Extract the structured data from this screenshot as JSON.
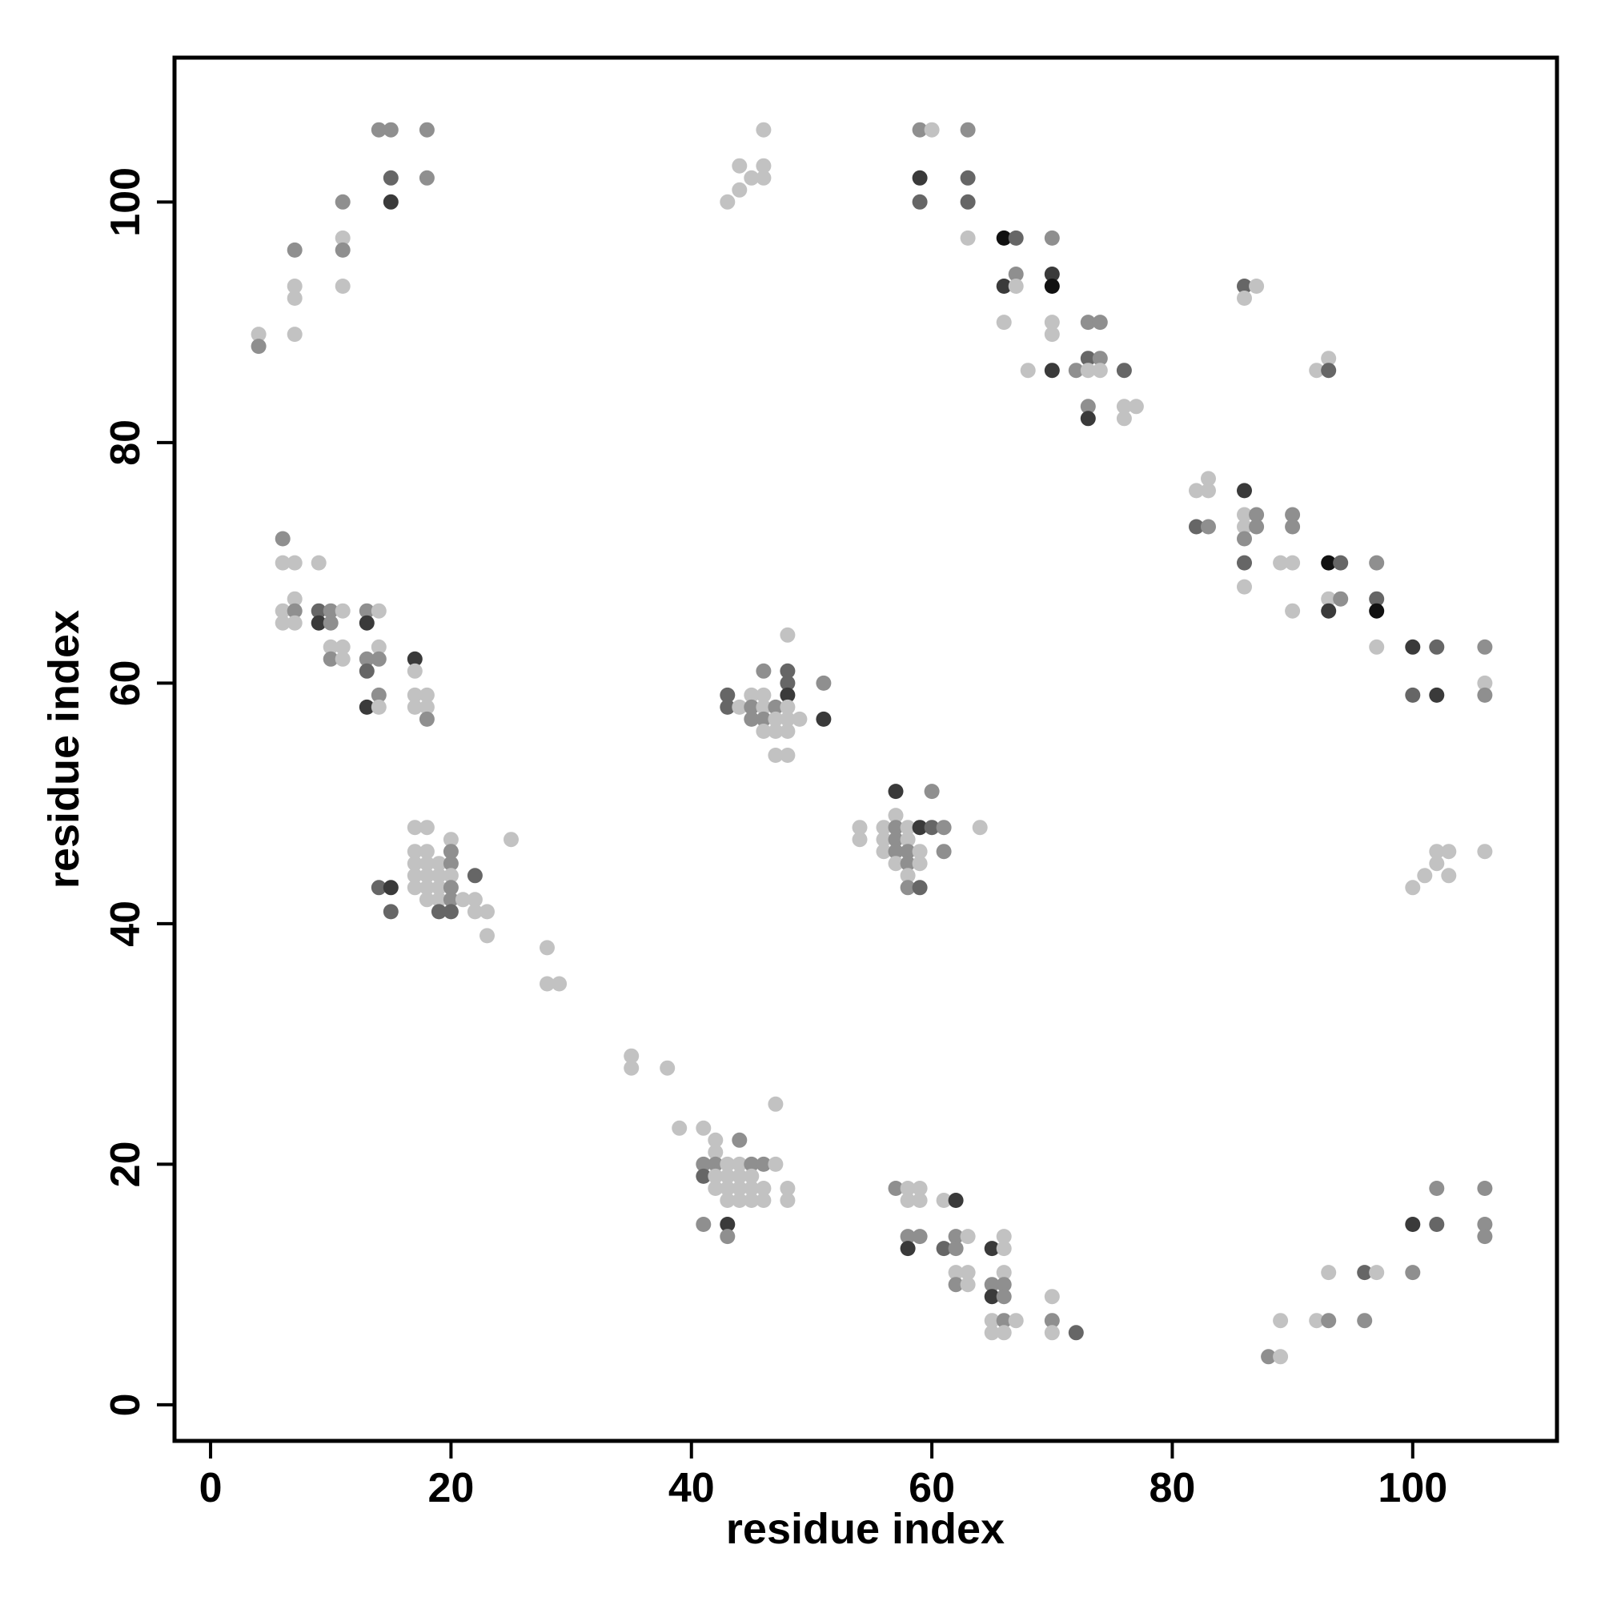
{
  "chart_data": {
    "type": "scatter",
    "title": "",
    "xlabel": "residue index",
    "ylabel": "residue index",
    "xlim": [
      -3,
      112
    ],
    "ylim": [
      -3,
      112
    ],
    "xticks": [
      0,
      20,
      40,
      60,
      80,
      100
    ],
    "yticks": [
      0,
      20,
      40,
      60,
      80,
      100
    ],
    "grid": false,
    "legend": "none",
    "marker_shades": {
      "1": "#c2c2c2",
      "2": "#8f8f8f",
      "3": "#666666",
      "4": "#3a3a3a",
      "5": "#111111"
    },
    "points": [
      [
        4,
        89,
        1
      ],
      [
        4,
        88,
        2
      ],
      [
        7,
        96,
        2
      ],
      [
        7,
        93,
        1
      ],
      [
        7,
        92,
        1
      ],
      [
        7,
        89,
        1
      ],
      [
        11,
        100,
        2
      ],
      [
        11,
        97,
        1
      ],
      [
        11,
        96,
        2
      ],
      [
        11,
        93,
        1
      ],
      [
        14,
        106,
        2
      ],
      [
        15,
        106,
        2
      ],
      [
        15,
        102,
        3
      ],
      [
        15,
        100,
        4
      ],
      [
        18,
        106,
        2
      ],
      [
        18,
        102,
        2
      ],
      [
        43,
        100,
        1
      ],
      [
        44,
        103,
        1
      ],
      [
        44,
        101,
        1
      ],
      [
        45,
        102,
        1
      ],
      [
        46,
        103,
        1
      ],
      [
        46,
        102,
        1
      ],
      [
        46,
        106,
        1
      ],
      [
        59,
        106,
        2
      ],
      [
        60,
        106,
        1
      ],
      [
        63,
        106,
        2
      ],
      [
        59,
        102,
        4
      ],
      [
        59,
        100,
        3
      ],
      [
        63,
        102,
        3
      ],
      [
        63,
        100,
        3
      ],
      [
        63,
        97,
        1
      ],
      [
        66,
        97,
        5
      ],
      [
        67,
        97,
        3
      ],
      [
        66,
        93,
        4
      ],
      [
        67,
        94,
        2
      ],
      [
        67,
        93,
        1
      ],
      [
        66,
        90,
        1
      ],
      [
        68,
        86,
        1
      ],
      [
        70,
        97,
        2
      ],
      [
        70,
        94,
        4
      ],
      [
        70,
        93,
        5
      ],
      [
        70,
        90,
        1
      ],
      [
        70,
        89,
        1
      ],
      [
        70,
        86,
        4
      ],
      [
        72,
        86,
        2
      ],
      [
        73,
        90,
        2
      ],
      [
        74,
        90,
        2
      ],
      [
        73,
        87,
        3
      ],
      [
        74,
        87,
        2
      ],
      [
        73,
        86,
        1
      ],
      [
        74,
        86,
        1
      ],
      [
        73,
        83,
        2
      ],
      [
        73,
        82,
        4
      ],
      [
        76,
        86,
        3
      ],
      [
        76,
        83,
        1
      ],
      [
        77,
        83,
        1
      ],
      [
        76,
        82,
        1
      ],
      [
        86,
        93,
        3
      ],
      [
        87,
        93,
        1
      ],
      [
        86,
        92,
        1
      ],
      [
        92,
        86,
        1
      ],
      [
        93,
        87,
        1
      ],
      [
        93,
        86,
        3
      ],
      [
        82,
        76,
        1
      ],
      [
        83,
        77,
        1
      ],
      [
        83,
        76,
        1
      ],
      [
        82,
        73,
        3
      ],
      [
        83,
        73,
        2
      ],
      [
        86,
        76,
        4
      ],
      [
        86,
        74,
        1
      ],
      [
        87,
        74,
        2
      ],
      [
        86,
        73,
        1
      ],
      [
        87,
        73,
        2
      ],
      [
        86,
        72,
        2
      ],
      [
        86,
        70,
        3
      ],
      [
        86,
        68,
        1
      ],
      [
        89,
        70,
        1
      ],
      [
        90,
        70,
        1
      ],
      [
        90,
        74,
        2
      ],
      [
        90,
        73,
        2
      ],
      [
        90,
        66,
        1
      ],
      [
        93,
        70,
        5
      ],
      [
        94,
        70,
        3
      ],
      [
        93,
        67,
        1
      ],
      [
        94,
        67,
        2
      ],
      [
        93,
        66,
        4
      ],
      [
        97,
        70,
        2
      ],
      [
        97,
        67,
        3
      ],
      [
        97,
        66,
        5
      ],
      [
        97,
        63,
        1
      ],
      [
        100,
        63,
        4
      ],
      [
        102,
        63,
        3
      ],
      [
        100,
        59,
        3
      ],
      [
        102,
        59,
        4
      ],
      [
        106,
        63,
        2
      ],
      [
        106,
        60,
        1
      ],
      [
        106,
        59,
        2
      ],
      [
        6,
        72,
        2
      ],
      [
        6,
        70,
        1
      ],
      [
        7,
        70,
        1
      ],
      [
        9,
        70,
        1
      ],
      [
        6,
        66,
        1
      ],
      [
        7,
        67,
        1
      ],
      [
        7,
        66,
        2
      ],
      [
        6,
        65,
        1
      ],
      [
        7,
        65,
        1
      ],
      [
        9,
        66,
        3
      ],
      [
        10,
        66,
        2
      ],
      [
        11,
        66,
        1
      ],
      [
        9,
        65,
        4
      ],
      [
        10,
        65,
        2
      ],
      [
        10,
        63,
        1
      ],
      [
        11,
        63,
        1
      ],
      [
        10,
        62,
        2
      ],
      [
        11,
        62,
        1
      ],
      [
        13,
        66,
        2
      ],
      [
        14,
        66,
        1
      ],
      [
        13,
        65,
        4
      ],
      [
        14,
        63,
        1
      ],
      [
        13,
        62,
        2
      ],
      [
        14,
        62,
        2
      ],
      [
        13,
        61,
        3
      ],
      [
        14,
        59,
        2
      ],
      [
        13,
        58,
        4
      ],
      [
        14,
        58,
        1
      ],
      [
        17,
        62,
        4
      ],
      [
        17,
        61,
        1
      ],
      [
        17,
        59,
        1
      ],
      [
        18,
        59,
        1
      ],
      [
        17,
        58,
        1
      ],
      [
        18,
        58,
        1
      ],
      [
        18,
        57,
        2
      ],
      [
        17,
        48,
        1
      ],
      [
        18,
        48,
        1
      ],
      [
        20,
        47,
        1
      ],
      [
        25,
        47,
        1
      ],
      [
        17,
        46,
        1
      ],
      [
        18,
        46,
        1
      ],
      [
        20,
        46,
        2
      ],
      [
        17,
        45,
        1
      ],
      [
        18,
        45,
        1
      ],
      [
        19,
        45,
        1
      ],
      [
        20,
        45,
        2
      ],
      [
        17,
        44,
        1
      ],
      [
        18,
        44,
        1
      ],
      [
        19,
        44,
        1
      ],
      [
        20,
        44,
        1
      ],
      [
        17,
        43,
        1
      ],
      [
        18,
        43,
        1
      ],
      [
        19,
        43,
        1
      ],
      [
        20,
        43,
        2
      ],
      [
        14,
        43,
        3
      ],
      [
        15,
        43,
        4
      ],
      [
        18,
        42,
        1
      ],
      [
        19,
        42,
        1
      ],
      [
        20,
        42,
        2
      ],
      [
        21,
        42,
        1
      ],
      [
        22,
        42,
        1
      ],
      [
        22,
        44,
        3
      ],
      [
        15,
        41,
        3
      ],
      [
        19,
        41,
        3
      ],
      [
        20,
        41,
        3
      ],
      [
        22,
        41,
        1
      ],
      [
        23,
        41,
        1
      ],
      [
        23,
        39,
        1
      ],
      [
        28,
        38,
        1
      ],
      [
        28,
        35,
        1
      ],
      [
        29,
        35,
        1
      ],
      [
        35,
        29,
        1
      ],
      [
        35,
        28,
        1
      ],
      [
        38,
        28,
        1
      ],
      [
        39,
        23,
        1
      ],
      [
        41,
        23,
        1
      ],
      [
        42,
        22,
        1
      ],
      [
        44,
        22,
        2
      ],
      [
        42,
        21,
        1
      ],
      [
        47,
        25,
        1
      ],
      [
        41,
        20,
        2
      ],
      [
        42,
        20,
        2
      ],
      [
        43,
        20,
        1
      ],
      [
        44,
        20,
        1
      ],
      [
        45,
        20,
        2
      ],
      [
        46,
        20,
        2
      ],
      [
        47,
        20,
        1
      ],
      [
        41,
        19,
        3
      ],
      [
        42,
        19,
        1
      ],
      [
        43,
        19,
        1
      ],
      [
        44,
        19,
        1
      ],
      [
        45,
        19,
        1
      ],
      [
        42,
        18,
        1
      ],
      [
        43,
        18,
        1
      ],
      [
        44,
        18,
        1
      ],
      [
        45,
        18,
        1
      ],
      [
        46,
        18,
        1
      ],
      [
        48,
        18,
        1
      ],
      [
        43,
        17,
        1
      ],
      [
        44,
        17,
        1
      ],
      [
        45,
        17,
        1
      ],
      [
        46,
        17,
        1
      ],
      [
        48,
        17,
        1
      ],
      [
        41,
        15,
        2
      ],
      [
        43,
        15,
        4
      ],
      [
        43,
        14,
        2
      ],
      [
        43,
        59,
        3
      ],
      [
        43,
        58,
        3
      ],
      [
        44,
        58,
        1
      ],
      [
        45,
        59,
        1
      ],
      [
        46,
        59,
        1
      ],
      [
        46,
        61,
        2
      ],
      [
        48,
        61,
        3
      ],
      [
        48,
        60,
        3
      ],
      [
        48,
        59,
        4
      ],
      [
        45,
        58,
        2
      ],
      [
        46,
        58,
        1
      ],
      [
        47,
        58,
        2
      ],
      [
        48,
        58,
        1
      ],
      [
        45,
        57,
        2
      ],
      [
        46,
        57,
        2
      ],
      [
        47,
        57,
        1
      ],
      [
        48,
        57,
        1
      ],
      [
        49,
        57,
        1
      ],
      [
        46,
        56,
        1
      ],
      [
        47,
        56,
        1
      ],
      [
        48,
        56,
        1
      ],
      [
        47,
        54,
        1
      ],
      [
        48,
        54,
        1
      ],
      [
        48,
        64,
        1
      ],
      [
        51,
        60,
        2
      ],
      [
        51,
        57,
        4
      ],
      [
        54,
        48,
        1
      ],
      [
        54,
        47,
        1
      ],
      [
        56,
        48,
        1
      ],
      [
        57,
        49,
        1
      ],
      [
        57,
        48,
        2
      ],
      [
        58,
        48,
        1
      ],
      [
        56,
        47,
        1
      ],
      [
        57,
        47,
        2
      ],
      [
        58,
        47,
        1
      ],
      [
        56,
        46,
        1
      ],
      [
        57,
        46,
        2
      ],
      [
        58,
        46,
        2
      ],
      [
        59,
        46,
        1
      ],
      [
        57,
        45,
        1
      ],
      [
        58,
        45,
        2
      ],
      [
        59,
        45,
        1
      ],
      [
        58,
        44,
        1
      ],
      [
        58,
        43,
        2
      ],
      [
        59,
        43,
        3
      ],
      [
        59,
        48,
        4
      ],
      [
        60,
        48,
        3
      ],
      [
        61,
        48,
        2
      ],
      [
        60,
        51,
        2
      ],
      [
        57,
        51,
        4
      ],
      [
        61,
        46,
        2
      ],
      [
        64,
        48,
        1
      ],
      [
        57,
        18,
        2
      ],
      [
        58,
        18,
        1
      ],
      [
        59,
        18,
        1
      ],
      [
        58,
        17,
        1
      ],
      [
        59,
        17,
        1
      ],
      [
        61,
        17,
        1
      ],
      [
        62,
        17,
        4
      ],
      [
        58,
        14,
        2
      ],
      [
        59,
        14,
        2
      ],
      [
        58,
        13,
        4
      ],
      [
        61,
        13,
        3
      ],
      [
        62,
        14,
        2
      ],
      [
        63,
        14,
        1
      ],
      [
        62,
        13,
        2
      ],
      [
        62,
        11,
        1
      ],
      [
        63,
        11,
        1
      ],
      [
        62,
        10,
        2
      ],
      [
        63,
        10,
        1
      ],
      [
        65,
        13,
        4
      ],
      [
        66,
        14,
        1
      ],
      [
        66,
        13,
        1
      ],
      [
        66,
        11,
        1
      ],
      [
        65,
        10,
        2
      ],
      [
        66,
        10,
        2
      ],
      [
        65,
        9,
        4
      ],
      [
        66,
        9,
        2
      ],
      [
        65,
        7,
        1
      ],
      [
        66,
        7,
        2
      ],
      [
        67,
        7,
        1
      ],
      [
        65,
        6,
        1
      ],
      [
        66,
        6,
        1
      ],
      [
        70,
        9,
        1
      ],
      [
        70,
        7,
        2
      ],
      [
        70,
        6,
        1
      ],
      [
        72,
        6,
        3
      ],
      [
        88,
        4,
        2
      ],
      [
        89,
        4,
        1
      ],
      [
        89,
        7,
        1
      ],
      [
        92,
        7,
        1
      ],
      [
        93,
        7,
        2
      ],
      [
        93,
        11,
        1
      ],
      [
        96,
        11,
        3
      ],
      [
        97,
        11,
        1
      ],
      [
        96,
        7,
        2
      ],
      [
        100,
        15,
        4
      ],
      [
        102,
        18,
        2
      ],
      [
        102,
        15,
        3
      ],
      [
        100,
        11,
        2
      ],
      [
        106,
        18,
        2
      ],
      [
        106,
        15,
        2
      ],
      [
        106,
        14,
        2
      ],
      [
        100,
        43,
        1
      ],
      [
        101,
        44,
        1
      ],
      [
        102,
        46,
        1
      ],
      [
        103,
        46,
        1
      ],
      [
        102,
        45,
        1
      ],
      [
        103,
        44,
        1
      ],
      [
        106,
        46,
        1
      ]
    ]
  }
}
